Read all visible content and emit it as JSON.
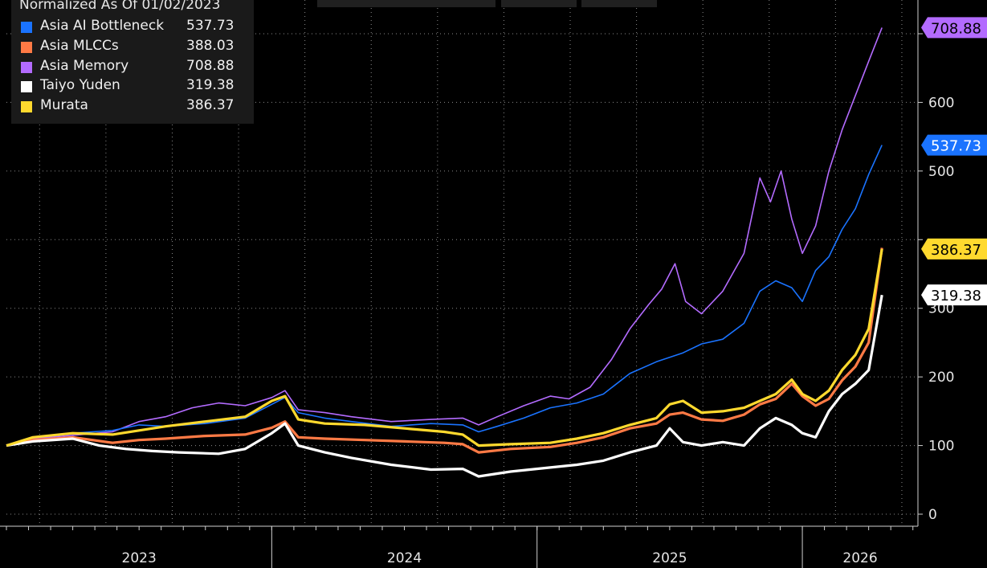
{
  "legend": {
    "title": "Normalized As Of 01/02/2023",
    "items": [
      {
        "name": "Asia AI Bottleneck",
        "value": "537.73",
        "color": "#1a73ff"
      },
      {
        "name": "Asia MLCCs",
        "value": "388.03",
        "color": "#ff7a45"
      },
      {
        "name": "Asia Memory",
        "value": "708.88",
        "color": "#b36bff"
      },
      {
        "name": "Taiyo Yuden",
        "value": "319.38",
        "color": "#ffffff"
      },
      {
        "name": "Murata",
        "value": "386.37",
        "color": "#ffd92e"
      }
    ]
  },
  "chart_data": {
    "type": "line",
    "title": "Normalized As Of 01/02/2023",
    "ylim": [
      0,
      720
    ],
    "yticks": [
      0,
      100,
      200,
      300,
      400,
      500,
      600,
      700
    ],
    "ytick_labels": [
      "0",
      "100",
      "200",
      "300",
      "",
      "500",
      "600",
      ""
    ],
    "xlim": [
      2023.0,
      2026.36
    ],
    "xticks": [
      "2023",
      "2024",
      "2025",
      "2026"
    ],
    "grid": true,
    "series": [
      {
        "name": "Asia AI Bottleneck",
        "color": "#1a73ff",
        "last_label": "537.73",
        "points": [
          [
            2023.0,
            100
          ],
          [
            2023.1,
            112
          ],
          [
            2023.25,
            118
          ],
          [
            2023.4,
            122
          ],
          [
            2023.5,
            130
          ],
          [
            2023.6,
            128
          ],
          [
            2023.75,
            132
          ],
          [
            2023.9,
            140
          ],
          [
            2024.0,
            160
          ],
          [
            2024.05,
            170
          ],
          [
            2024.1,
            148
          ],
          [
            2024.2,
            140
          ],
          [
            2024.3,
            135
          ],
          [
            2024.45,
            128
          ],
          [
            2024.6,
            132
          ],
          [
            2024.72,
            130
          ],
          [
            2024.78,
            120
          ],
          [
            2024.85,
            128
          ],
          [
            2024.95,
            140
          ],
          [
            2025.05,
            155
          ],
          [
            2025.15,
            162
          ],
          [
            2025.25,
            175
          ],
          [
            2025.35,
            205
          ],
          [
            2025.45,
            222
          ],
          [
            2025.55,
            235
          ],
          [
            2025.62,
            248
          ],
          [
            2025.7,
            255
          ],
          [
            2025.78,
            278
          ],
          [
            2025.84,
            325
          ],
          [
            2025.9,
            340
          ],
          [
            2025.96,
            330
          ],
          [
            2026.0,
            310
          ],
          [
            2026.05,
            355
          ],
          [
            2026.1,
            375
          ],
          [
            2026.15,
            415
          ],
          [
            2026.2,
            445
          ],
          [
            2026.25,
            495
          ],
          [
            2026.3,
            537.73
          ]
        ]
      },
      {
        "name": "Asia MLCCs",
        "color": "#ff7a45",
        "last_label": "",
        "points": [
          [
            2023.0,
            100
          ],
          [
            2023.1,
            108
          ],
          [
            2023.25,
            112
          ],
          [
            2023.4,
            104
          ],
          [
            2023.5,
            108
          ],
          [
            2023.6,
            110
          ],
          [
            2023.75,
            114
          ],
          [
            2023.9,
            116
          ],
          [
            2024.0,
            126
          ],
          [
            2024.05,
            135
          ],
          [
            2024.1,
            112
          ],
          [
            2024.2,
            110
          ],
          [
            2024.35,
            108
          ],
          [
            2024.5,
            106
          ],
          [
            2024.65,
            104
          ],
          [
            2024.72,
            102
          ],
          [
            2024.78,
            90
          ],
          [
            2024.9,
            95
          ],
          [
            2025.05,
            98
          ],
          [
            2025.15,
            104
          ],
          [
            2025.25,
            112
          ],
          [
            2025.35,
            125
          ],
          [
            2025.45,
            132
          ],
          [
            2025.5,
            145
          ],
          [
            2025.55,
            148
          ],
          [
            2025.62,
            138
          ],
          [
            2025.7,
            136
          ],
          [
            2025.78,
            145
          ],
          [
            2025.84,
            160
          ],
          [
            2025.9,
            168
          ],
          [
            2025.96,
            190
          ],
          [
            2026.0,
            172
          ],
          [
            2026.05,
            158
          ],
          [
            2026.1,
            168
          ],
          [
            2026.15,
            195
          ],
          [
            2026.2,
            215
          ],
          [
            2026.25,
            250
          ],
          [
            2026.3,
            388.03
          ]
        ]
      },
      {
        "name": "Asia Memory",
        "color": "#b36bff",
        "last_label": "708.88",
        "points": [
          [
            2023.0,
            100
          ],
          [
            2023.1,
            110
          ],
          [
            2023.25,
            115
          ],
          [
            2023.4,
            120
          ],
          [
            2023.5,
            135
          ],
          [
            2023.6,
            142
          ],
          [
            2023.7,
            155
          ],
          [
            2023.8,
            162
          ],
          [
            2023.9,
            158
          ],
          [
            2024.0,
            170
          ],
          [
            2024.05,
            180
          ],
          [
            2024.1,
            152
          ],
          [
            2024.2,
            148
          ],
          [
            2024.3,
            142
          ],
          [
            2024.45,
            135
          ],
          [
            2024.6,
            138
          ],
          [
            2024.72,
            140
          ],
          [
            2024.78,
            130
          ],
          [
            2024.85,
            142
          ],
          [
            2024.95,
            158
          ],
          [
            2025.05,
            172
          ],
          [
            2025.12,
            168
          ],
          [
            2025.2,
            185
          ],
          [
            2025.28,
            225
          ],
          [
            2025.35,
            270
          ],
          [
            2025.42,
            305
          ],
          [
            2025.47,
            328
          ],
          [
            2025.52,
            365
          ],
          [
            2025.56,
            310
          ],
          [
            2025.62,
            292
          ],
          [
            2025.7,
            325
          ],
          [
            2025.78,
            380
          ],
          [
            2025.84,
            490
          ],
          [
            2025.88,
            455
          ],
          [
            2025.92,
            500
          ],
          [
            2025.96,
            430
          ],
          [
            2026.0,
            380
          ],
          [
            2026.05,
            420
          ],
          [
            2026.1,
            500
          ],
          [
            2026.15,
            560
          ],
          [
            2026.2,
            610
          ],
          [
            2026.25,
            660
          ],
          [
            2026.3,
            708.88
          ]
        ]
      },
      {
        "name": "Taiyo Yuden",
        "color": "#ffffff",
        "last_label": "319.38",
        "points": [
          [
            2023.0,
            100
          ],
          [
            2023.1,
            106
          ],
          [
            2023.25,
            110
          ],
          [
            2023.35,
            100
          ],
          [
            2023.45,
            95
          ],
          [
            2023.55,
            92
          ],
          [
            2023.65,
            90
          ],
          [
            2023.8,
            88
          ],
          [
            2023.9,
            95
          ],
          [
            2024.0,
            118
          ],
          [
            2024.05,
            132
          ],
          [
            2024.1,
            100
          ],
          [
            2024.2,
            90
          ],
          [
            2024.3,
            82
          ],
          [
            2024.45,
            72
          ],
          [
            2024.6,
            65
          ],
          [
            2024.72,
            66
          ],
          [
            2024.78,
            55
          ],
          [
            2024.9,
            62
          ],
          [
            2025.05,
            68
          ],
          [
            2025.15,
            72
          ],
          [
            2025.25,
            78
          ],
          [
            2025.35,
            90
          ],
          [
            2025.45,
            100
          ],
          [
            2025.5,
            125
          ],
          [
            2025.55,
            105
          ],
          [
            2025.62,
            100
          ],
          [
            2025.7,
            105
          ],
          [
            2025.78,
            100
          ],
          [
            2025.84,
            125
          ],
          [
            2025.9,
            140
          ],
          [
            2025.96,
            130
          ],
          [
            2026.0,
            118
          ],
          [
            2026.05,
            112
          ],
          [
            2026.1,
            150
          ],
          [
            2026.15,
            175
          ],
          [
            2026.2,
            190
          ],
          [
            2026.25,
            210
          ],
          [
            2026.3,
            319.38
          ]
        ]
      },
      {
        "name": "Murata",
        "color": "#ffd92e",
        "last_label": "386.37",
        "points": [
          [
            2023.0,
            100
          ],
          [
            2023.1,
            112
          ],
          [
            2023.25,
            118
          ],
          [
            2023.4,
            116
          ],
          [
            2023.5,
            122
          ],
          [
            2023.6,
            128
          ],
          [
            2023.75,
            135
          ],
          [
            2023.9,
            142
          ],
          [
            2024.0,
            165
          ],
          [
            2024.05,
            172
          ],
          [
            2024.1,
            138
          ],
          [
            2024.2,
            132
          ],
          [
            2024.35,
            130
          ],
          [
            2024.5,
            125
          ],
          [
            2024.65,
            120
          ],
          [
            2024.72,
            116
          ],
          [
            2024.78,
            100
          ],
          [
            2024.9,
            102
          ],
          [
            2025.05,
            104
          ],
          [
            2025.15,
            110
          ],
          [
            2025.25,
            118
          ],
          [
            2025.35,
            130
          ],
          [
            2025.45,
            140
          ],
          [
            2025.5,
            160
          ],
          [
            2025.55,
            165
          ],
          [
            2025.62,
            148
          ],
          [
            2025.7,
            150
          ],
          [
            2025.78,
            155
          ],
          [
            2025.84,
            165
          ],
          [
            2025.9,
            175
          ],
          [
            2025.96,
            196
          ],
          [
            2026.0,
            175
          ],
          [
            2026.05,
            165
          ],
          [
            2026.1,
            180
          ],
          [
            2026.15,
            210
          ],
          [
            2026.2,
            232
          ],
          [
            2026.25,
            270
          ],
          [
            2026.3,
            386.37
          ]
        ]
      }
    ]
  }
}
